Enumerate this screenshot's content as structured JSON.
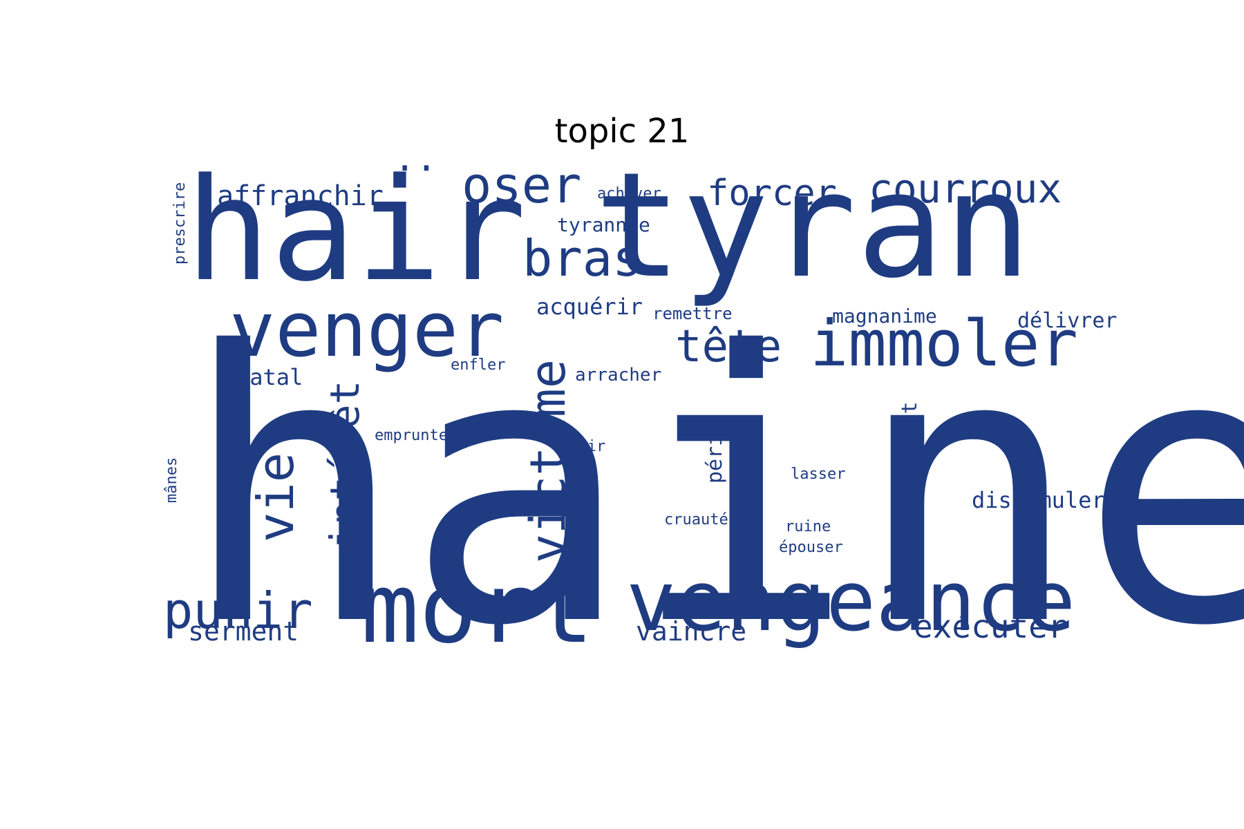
{
  "title": "topic 21",
  "color": "#1f3c82",
  "words": [
    {
      "text": "haine",
      "weight": 1.0
    },
    {
      "text": "tyran",
      "weight": 0.55
    },
    {
      "text": "hair",
      "weight": 0.5
    },
    {
      "text": "mort",
      "weight": 0.38
    },
    {
      "text": "vengeance",
      "weight": 0.34
    },
    {
      "text": "venger",
      "weight": 0.3
    },
    {
      "text": "immoler",
      "weight": 0.26
    },
    {
      "text": "bras",
      "weight": 0.2
    },
    {
      "text": "victime",
      "weight": 0.2
    },
    {
      "text": "punir",
      "weight": 0.2
    },
    {
      "text": "vie",
      "weight": 0.2
    },
    {
      "text": "oser",
      "weight": 0.2
    },
    {
      "text": "tête",
      "weight": 0.18
    },
    {
      "text": "intérêt",
      "weight": 0.16
    },
    {
      "text": "courroux",
      "weight": 0.15
    },
    {
      "text": "forcer",
      "weight": 0.14
    },
    {
      "text": "exécuter",
      "weight": 0.12
    },
    {
      "text": "affranchir",
      "weight": 0.11
    },
    {
      "text": "..",
      "weight": 0.12
    },
    {
      "text": "serment",
      "weight": 0.1
    },
    {
      "text": "vaincre",
      "weight": 0.1
    },
    {
      "text": "dissimuler",
      "weight": 0.09
    },
    {
      "text": "ressentiment",
      "weight": 0.09
    },
    {
      "text": "péril",
      "weight": 0.09
    },
    {
      "text": "fatal",
      "weight": 0.09
    },
    {
      "text": "acquérir",
      "weight": 0.09
    },
    {
      "text": "délivrer",
      "weight": 0.08
    },
    {
      "text": "magnanime",
      "weight": 0.08
    },
    {
      "text": "tyrannie",
      "weight": 0.08
    },
    {
      "text": "arracher",
      "weight": 0.07
    },
    {
      "text": "remettre",
      "weight": 0.07
    },
    {
      "text": "achever",
      "weight": 0.06
    },
    {
      "text": "enfler",
      "weight": 0.06
    },
    {
      "text": "emprunter",
      "weight": 0.06
    },
    {
      "text": "obéir",
      "weight": 0.06
    },
    {
      "text": "lasser",
      "weight": 0.06
    },
    {
      "text": "cruauté",
      "weight": 0.06
    },
    {
      "text": "ruine",
      "weight": 0.06
    },
    {
      "text": "épouser",
      "weight": 0.06
    },
    {
      "text": "mânes",
      "weight": 0.05
    },
    {
      "text": "prescrire",
      "weight": 0.05
    }
  ]
}
